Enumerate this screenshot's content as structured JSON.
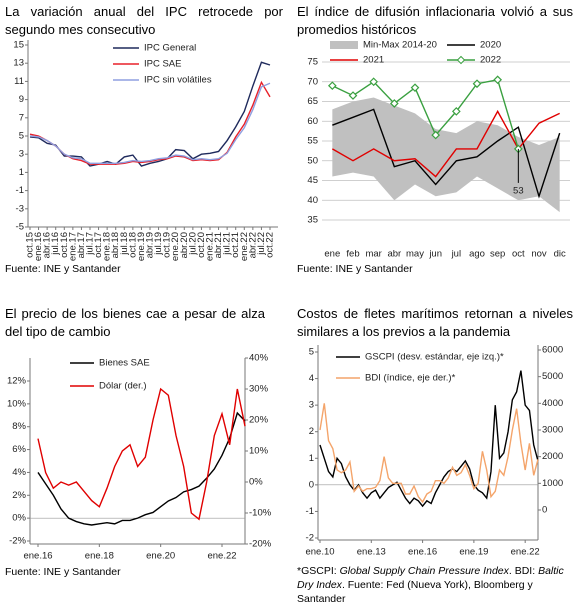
{
  "chart_data": [
    {
      "type": "line",
      "title": "La variación anual del IPC retrocede por segundo mes consecutivo",
      "source": "Fuente: INE y Santander",
      "categories": [
        "oct.15",
        "ene.16",
        "abr.16",
        "jul.16",
        "oct.16",
        "ene.17",
        "abr.17",
        "jul.17",
        "oct.17",
        "ene.18",
        "abr.18",
        "jul.18",
        "oct.18",
        "ene.19",
        "abr.19",
        "jul.19",
        "oct.19",
        "ene.20",
        "abr.20",
        "jul.20",
        "oct.20",
        "ene.21",
        "abr.21",
        "jul.21",
        "oct.21",
        "ene.22",
        "abr.22",
        "jul.22",
        "oct.22"
      ],
      "ylim": [
        -5,
        15
      ],
      "yticks": [
        -5,
        -3,
        -1,
        1,
        3,
        5,
        7,
        9,
        11,
        13,
        15
      ],
      "legend": "upper left",
      "series": [
        {
          "name": "IPC General",
          "color": "#1f2a5c",
          "values": [
            4.9,
            4.8,
            4.2,
            4.0,
            2.8,
            2.8,
            2.7,
            1.7,
            1.9,
            2.2,
            1.9,
            2.7,
            2.9,
            1.7,
            2.0,
            2.2,
            2.5,
            3.5,
            3.4,
            2.5,
            3.0,
            3.1,
            3.3,
            4.5,
            6.0,
            7.7,
            10.5,
            13.1,
            12.8
          ]
        },
        {
          "name": "IPC SAE",
          "color": "#e8202a",
          "values": [
            5.2,
            5.0,
            4.5,
            3.9,
            3.0,
            2.5,
            2.3,
            1.9,
            1.9,
            1.9,
            1.9,
            2.0,
            2.2,
            2.1,
            2.2,
            2.4,
            2.5,
            2.8,
            2.7,
            2.3,
            2.4,
            2.3,
            2.4,
            3.2,
            4.9,
            6.3,
            8.4,
            10.9,
            9.3
          ]
        },
        {
          "name": "IPC sin volátiles",
          "color": "#8f9fe0",
          "values": [
            5.0,
            4.9,
            4.5,
            3.9,
            3.0,
            2.6,
            2.5,
            2.0,
            2.0,
            2.0,
            2.0,
            2.1,
            2.3,
            2.2,
            2.3,
            2.5,
            2.6,
            2.9,
            2.8,
            2.4,
            2.5,
            2.4,
            2.5,
            3.1,
            4.6,
            5.9,
            7.9,
            10.4,
            10.8
          ]
        }
      ]
    },
    {
      "type": "line",
      "title": "El índice de difusión inflacionaria volvió a sus promedios históricos",
      "source": "Fuente: INE y Santander",
      "categories": [
        "ene",
        "feb",
        "mar",
        "abr",
        "may",
        "jun",
        "jul",
        "ago",
        "sep",
        "oct",
        "nov",
        "dic"
      ],
      "ylim": [
        35,
        75
      ],
      "yticks": [
        35,
        40,
        45,
        50,
        55,
        60,
        65,
        70,
        75
      ],
      "grid": true,
      "legend": "top",
      "series": [
        {
          "name": "Min-Max 2014-20",
          "color": "#c0c0c0",
          "low": [
            46,
            47,
            46,
            40,
            44,
            41,
            42,
            46,
            43,
            40,
            41,
            37
          ],
          "high": [
            63,
            65,
            66,
            64,
            62,
            58,
            57,
            60,
            59,
            56,
            54,
            56
          ]
        },
        {
          "name": "2020",
          "color": "#000000",
          "values": [
            59,
            61,
            63,
            48.5,
            50,
            44,
            50,
            51,
            55,
            58.5,
            41,
            57
          ]
        },
        {
          "name": "2021",
          "color": "#e00000",
          "values": [
            53,
            50,
            53,
            50,
            50.5,
            46,
            53,
            53,
            62.5,
            53,
            59.5,
            62
          ]
        },
        {
          "name": "2022",
          "color": "#3aa040",
          "marker": "diamond",
          "values": [
            69,
            66.5,
            70,
            64.5,
            68.5,
            56.5,
            62.5,
            69.5,
            70.5,
            53,
            null,
            null
          ],
          "value_labels": [
            null,
            null,
            null,
            null,
            null,
            null,
            null,
            null,
            null,
            "53",
            null,
            null
          ]
        }
      ]
    },
    {
      "type": "line",
      "title": "El precio de los bienes cae a pesar de alza del tipo de cambio",
      "source": "Fuente: INE y Santander",
      "categories": [
        "ene.16",
        null,
        null,
        null,
        null,
        null,
        null,
        null,
        "ene.18",
        null,
        null,
        null,
        null,
        null,
        null,
        null,
        "ene.20",
        null,
        null,
        null,
        null,
        null,
        null,
        null,
        "ene.22",
        null,
        null,
        null
      ],
      "ylim": [
        -2,
        12
      ],
      "yticks": [
        {
          "value": -2,
          "label": "-2%"
        },
        {
          "value": 0,
          "label": "0%"
        },
        {
          "value": 2,
          "label": "2%"
        },
        {
          "value": 4,
          "label": "4%"
        },
        {
          "value": 6,
          "label": "6%"
        },
        {
          "value": 8,
          "label": "8%"
        },
        {
          "value": 10,
          "label": "10%"
        },
        {
          "value": 12,
          "label": "12%"
        }
      ],
      "y2lim": [
        -20,
        40
      ],
      "y2ticks": [
        {
          "value": -20,
          "label": "-20%"
        },
        {
          "value": -10,
          "label": "-10%"
        },
        {
          "value": 0,
          "label": "0%"
        },
        {
          "value": 10,
          "label": "10%"
        },
        {
          "value": 20,
          "label": "20%"
        },
        {
          "value": 30,
          "label": "30%"
        },
        {
          "value": 40,
          "label": "40%"
        }
      ],
      "legend": "upper left",
      "series": [
        {
          "name": "Bienes SAE",
          "color": "#000000",
          "values": [
            4.0,
            3.0,
            2.0,
            0.8,
            0.0,
            -0.3,
            -0.5,
            -0.6,
            -0.5,
            -0.4,
            -0.5,
            -0.2,
            -0.2,
            0.0,
            0.3,
            0.5,
            1.0,
            1.5,
            1.8,
            2.3,
            2.5,
            2.8,
            3.5,
            4.3,
            5.5,
            7.0,
            9.2,
            8.5
          ]
        },
        {
          "name": "Dólar (der.)",
          "color": "#e00000",
          "axis": "y2",
          "values": [
            14,
            3,
            -2,
            0,
            -1,
            0,
            -3,
            -6,
            -8,
            -2,
            5,
            10,
            12,
            5,
            8,
            20,
            30,
            28,
            15,
            5,
            -10,
            -12,
            0,
            15,
            22,
            12,
            30,
            18
          ]
        }
      ]
    },
    {
      "type": "line",
      "title": "Costos de fletes marítimos retornan a niveles similares a los previos a la pandemia",
      "footnote": [
        {
          "text": "*GSCPI: ",
          "italic": false
        },
        {
          "text": "Global Supply Chain Pressure Index",
          "italic": true
        },
        {
          "text": ". BDI: ",
          "italic": false
        },
        {
          "text": "Baltic Dry Index",
          "italic": true
        },
        {
          "text": ". Fuente: Fed (Nueva York), Bloomberg y Santander",
          "italic": false
        }
      ],
      "categories": [
        "ene.10",
        null,
        null,
        null,
        null,
        null,
        null,
        null,
        null,
        null,
        null,
        null,
        "ene.13",
        null,
        null,
        null,
        null,
        null,
        null,
        null,
        null,
        null,
        null,
        null,
        "ene.16",
        null,
        null,
        null,
        null,
        null,
        null,
        null,
        null,
        null,
        null,
        null,
        "ene.19",
        null,
        null,
        null,
        null,
        null,
        null,
        null,
        null,
        null,
        null,
        null,
        "ene.22",
        null,
        null,
        null
      ],
      "ylim": [
        -2,
        5
      ],
      "yticks": [
        -2,
        -1,
        0,
        1,
        2,
        3,
        4,
        5
      ],
      "y2lim": [
        0,
        6000
      ],
      "y2ticks": [
        0,
        1000,
        2000,
        3000,
        4000,
        5000,
        6000
      ],
      "legend": "upper left",
      "series": [
        {
          "name": "GSCPI (desv. estándar, eje izq.)*",
          "color": "#000000",
          "values": [
            1.5,
            1.0,
            0.5,
            0.3,
            1.0,
            0.8,
            0.3,
            0.0,
            -0.2,
            0.0,
            -0.3,
            -0.5,
            -0.3,
            -0.2,
            -0.5,
            -0.3,
            -0.1,
            0.0,
            0.1,
            -0.2,
            -0.5,
            -0.7,
            -0.5,
            -0.6,
            -0.8,
            -0.6,
            -0.7,
            -0.3,
            0.0,
            0.3,
            0.5,
            0.6,
            0.5,
            0.7,
            0.9,
            0.6,
            0.0,
            -0.2,
            -0.3,
            -0.5,
            0.5,
            3.0,
            1.0,
            1.2,
            2.0,
            3.2,
            3.5,
            4.3,
            3.0,
            2.8,
            1.5,
            0.9
          ]
        },
        {
          "name": "BDI (índice, eje der.)*",
          "color": "#f4a46a",
          "axis": "y2",
          "values": [
            3000,
            4000,
            2600,
            2300,
            1500,
            1400,
            1500,
            1800,
            700,
            900,
            700,
            800,
            800,
            850,
            1100,
            2000,
            1200,
            1000,
            1000,
            1000,
            600,
            600,
            900,
            500,
            300,
            600,
            700,
            1100,
            1100,
            1000,
            1200,
            1600,
            1300,
            1400,
            1700,
            1300,
            800,
            1000,
            2200,
            1500,
            500,
            700,
            1500,
            1300,
            2000,
            3000,
            3800,
            2500,
            1500,
            2500,
            1300,
            1900
          ]
        }
      ]
    }
  ]
}
